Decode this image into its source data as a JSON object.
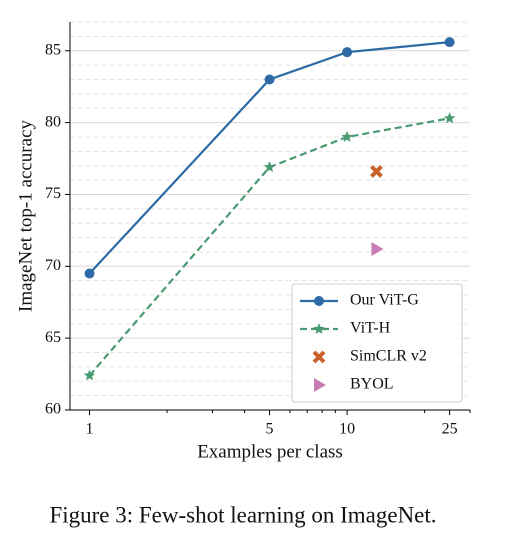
{
  "chart_data": {
    "type": "line",
    "xlabel": "Examples per class",
    "ylabel": "ImageNet top-1 accuracy",
    "xscale": "log",
    "xlim": [
      0.84,
      30
    ],
    "ylim": [
      60,
      87
    ],
    "xticks": [
      1,
      5,
      10,
      25
    ],
    "xminorticks": [
      2,
      3,
      4,
      6,
      7,
      8,
      9,
      20,
      30
    ],
    "yticks": [
      60,
      65,
      70,
      75,
      80,
      85
    ],
    "yminor_step": 1,
    "grid": true,
    "legend": "lower right",
    "series": [
      {
        "name": "Our ViT-G",
        "color": "#2e6aa6",
        "marker": "circle",
        "linestyle": "solid",
        "x": [
          1,
          5,
          10,
          25
        ],
        "values": [
          69.5,
          83.0,
          84.9,
          85.6
        ]
      },
      {
        "name": "ViT-H",
        "color": "#4a9a72",
        "marker": "star",
        "linestyle": "dashed",
        "x": [
          1,
          5,
          10,
          25
        ],
        "values": [
          62.4,
          76.9,
          79.0,
          80.3
        ]
      },
      {
        "name": "SimCLR v2",
        "color": "#c8612a",
        "marker": "x",
        "linestyle": "none",
        "x": [
          13
        ],
        "values": [
          76.6
        ]
      },
      {
        "name": "BYOL",
        "color": "#c87db2",
        "marker": "triangle",
        "linestyle": "none",
        "x": [
          13
        ],
        "values": [
          71.2
        ]
      }
    ]
  },
  "caption": "Figure 3: Few-shot learning on ImageNet."
}
